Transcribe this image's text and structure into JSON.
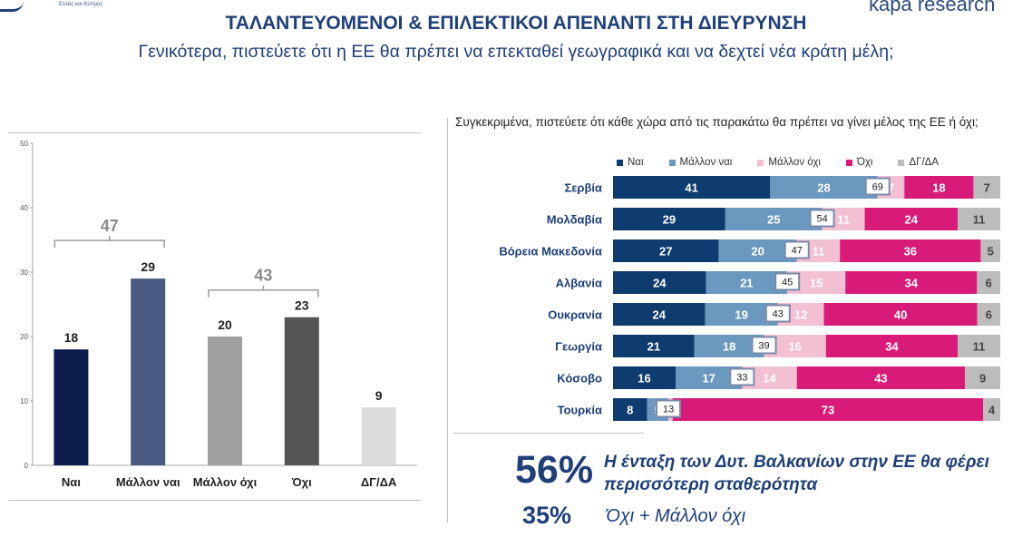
{
  "header": {
    "left_logo_sub": "Ελλάς και Κύπρος",
    "right_logo": "kapa research",
    "title": "ΤΑΛΑΝΤΕΥΟΜΕΝΟΙ & ΕΠΙΛΕΚΤΙΚΟΙ ΑΠΕΝΑΝΤΙ ΣΤΗ ΔΙΕΥΡΥΝΣΗ",
    "subtitle": "Γενικότερα, πιστεύετε ότι η ΕΕ θα πρέπει να επεκταθεί γεωγραφικά και να δεχτεί νέα κράτη μέλη;"
  },
  "right_question": "Συγκεκριμένα, πιστεύετε ότι κάθε χώρα από τις παρακάτω θα πρέπει να γίνει μέλος της ΕΕ ή όχι;",
  "chart_data": [
    {
      "type": "bar",
      "categories": [
        "Ναι",
        "Μάλλον ναι",
        "Μάλλον όχι",
        "Όχι",
        "ΔΓ/ΔΑ"
      ],
      "values": [
        18,
        29,
        20,
        23,
        9
      ],
      "colors": [
        "#0c1c4c",
        "#4a5a82",
        "#a0a0a0",
        "#555555",
        "#dcdcdc"
      ],
      "ylim": [
        0,
        50
      ],
      "yticks": [
        0,
        10,
        20,
        30,
        40,
        50
      ],
      "grid": false,
      "group_totals": [
        {
          "label": "47",
          "categories": [
            "Ναι",
            "Μάλλον ναι"
          ]
        },
        {
          "label": "43",
          "categories": [
            "Μάλλον όχι",
            "Όχι"
          ]
        }
      ]
    },
    {
      "type": "bar",
      "orientation": "horizontal",
      "stacked": true,
      "legend_position": "top",
      "categories": [
        "Σερβία",
        "Μολδαβία",
        "Βόρεια Μακεδονία",
        "Αλβανία",
        "Ουκρανία",
        "Γεωργία",
        "Κόσοβο",
        "Τουρκία"
      ],
      "series": [
        {
          "name": "Ναι",
          "color": "#0f3c6e",
          "values": [
            41,
            29,
            27,
            24,
            24,
            21,
            16,
            8
          ]
        },
        {
          "name": "Μάλλον ναι",
          "color": "#6b98bf",
          "values": [
            28,
            25,
            20,
            21,
            19,
            18,
            17,
            5
          ]
        },
        {
          "name": "Μάλλον όχι",
          "color": "#f3bfd3",
          "values": [
            7,
            11,
            11,
            15,
            12,
            16,
            14,
            1
          ]
        },
        {
          "name": "Όχι",
          "color": "#d81b78",
          "values": [
            18,
            24,
            36,
            34,
            40,
            34,
            43,
            73
          ]
        },
        {
          "name": "ΔΓ/ΔΑ",
          "color": "#bcbcbc",
          "values": [
            7,
            11,
            5,
            6,
            6,
            11,
            9,
            4
          ]
        }
      ],
      "totals_yes": [
        69,
        54,
        47,
        45,
        43,
        39,
        33,
        13
      ]
    }
  ],
  "highlights": {
    "pct1": "56%",
    "text1": "Η ένταξη των Δυτ. Βαλκανίων στην ΕΕ θα φέρει περισσότερη σταθερότητα",
    "pct2": "35%",
    "text2": "Όχι + Μάλλον όχι"
  }
}
